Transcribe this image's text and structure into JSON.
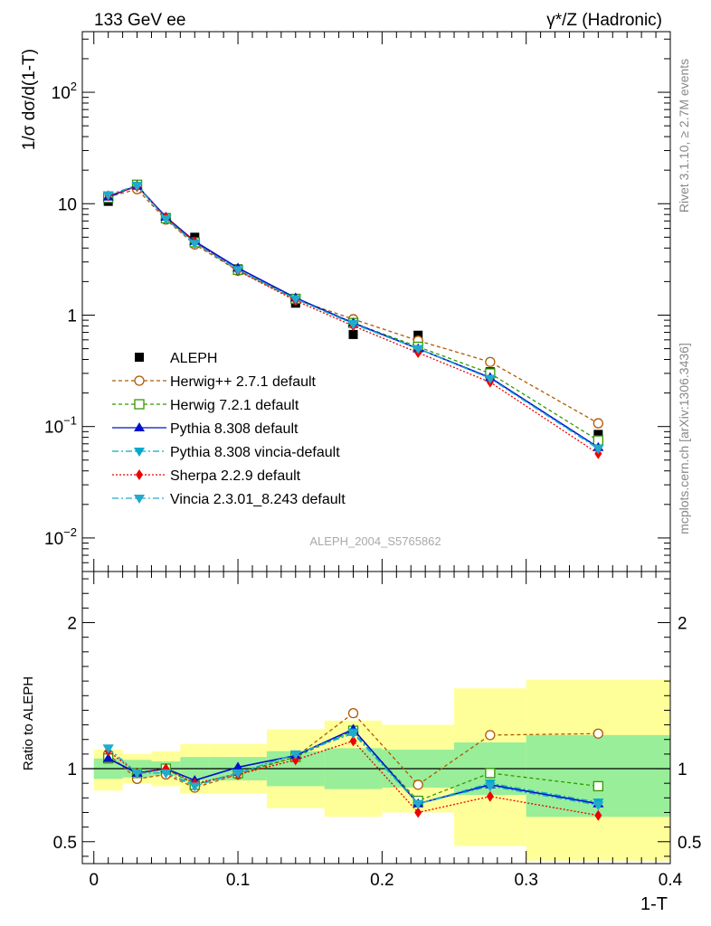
{
  "header": {
    "left": "133 GeV ee",
    "right": "γ*/Z (Hadronic)"
  },
  "side_labels": {
    "rivet": "Rivet 3.1.10, ≥ 2.7M events",
    "source": "mcplots.cern.ch [arXiv:1306.3436]"
  },
  "analysis_label": "ALEPH_2004_S5765862",
  "chart_data": [
    {
      "type": "scatter",
      "panel": "main",
      "ylabel": "1/σ  dσ/d(1-T)",
      "yscale": "log",
      "ylim": [
        0.005,
        350
      ],
      "xlim": [
        -0.008,
        0.4
      ],
      "y_ticks": [
        {
          "value": 0.01,
          "base": "10",
          "exp": "−2"
        },
        {
          "value": 0.1,
          "base": "10",
          "exp": "−1"
        },
        {
          "value": 1,
          "base": "1",
          "exp": ""
        },
        {
          "value": 10,
          "base": "10",
          "exp": ""
        },
        {
          "value": 100,
          "base": "10",
          "exp": "2"
        }
      ],
      "legend_position": "lower-left",
      "x": [
        0.01,
        0.03,
        0.05,
        0.07,
        0.1,
        0.14,
        0.18,
        0.225,
        0.275,
        0.35
      ],
      "series": [
        {
          "name": "ALEPH",
          "style": "data",
          "color": "#000000",
          "marker": "square-filled",
          "values": [
            10.5,
            14.5,
            7.5,
            5.0,
            2.6,
            1.28,
            0.67,
            0.66,
            0.31,
            0.085
          ]
        },
        {
          "name": "Herwig++ 2.7.1 default",
          "color": "#b05a00",
          "dash": "4,3",
          "marker": "circle-open",
          "values": [
            11.5,
            13.5,
            7.2,
            4.3,
            2.5,
            1.38,
            0.92,
            0.59,
            0.38,
            0.107
          ]
        },
        {
          "name": "Herwig 7.2.1 default",
          "color": "#339900",
          "dash": "4,3",
          "marker": "square-open",
          "values": [
            11.3,
            14.8,
            7.4,
            4.5,
            2.55,
            1.4,
            0.85,
            0.52,
            0.3,
            0.075
          ]
        },
        {
          "name": "Pythia 8.308 default",
          "color": "#0011cc",
          "dash": "",
          "marker": "triangle-up",
          "values": [
            11.5,
            14.5,
            7.6,
            4.6,
            2.65,
            1.43,
            0.85,
            0.5,
            0.275,
            0.065
          ]
        },
        {
          "name": "Pythia 8.308 vincia-default",
          "color": "#00aacc",
          "dash": "7,3,2,3",
          "marker": "triangle-down",
          "values": [
            12.0,
            14.6,
            7.4,
            4.45,
            2.55,
            1.4,
            0.84,
            0.5,
            0.27,
            0.064
          ]
        },
        {
          "name": "Sherpa 2.2.9 default",
          "color": "#ee0000",
          "dash": "2,2",
          "marker": "diamond",
          "values": [
            11.8,
            14.2,
            7.5,
            4.55,
            2.5,
            1.35,
            0.8,
            0.46,
            0.25,
            0.057
          ]
        },
        {
          "name": "Vincia 2.3.01_8.243 default",
          "color": "#22aacc",
          "dash": "7,3,2,3",
          "marker": "triangle-down",
          "values": [
            12.0,
            14.5,
            7.3,
            4.4,
            2.55,
            1.4,
            0.83,
            0.5,
            0.27,
            0.063
          ]
        }
      ]
    },
    {
      "type": "scatter",
      "panel": "ratio",
      "ylabel": "Ratio to ALEPH",
      "xlabel": "1-T",
      "ylim": [
        0.35,
        2.35
      ],
      "xlim": [
        -0.008,
        0.4
      ],
      "x_ticks": [
        {
          "value": 0,
          "label": "0"
        },
        {
          "value": 0.1,
          "label": "0.1"
        },
        {
          "value": 0.2,
          "label": "0.2"
        },
        {
          "value": 0.3,
          "label": "0.3"
        },
        {
          "value": 0.4,
          "label": "0.4"
        }
      ],
      "y_ticks": [
        {
          "value": 0.5,
          "label": "0.5"
        },
        {
          "value": 1,
          "label": "1"
        },
        {
          "value": 2,
          "label": "2"
        }
      ],
      "bin_edges": [
        0,
        0.02,
        0.04,
        0.06,
        0.08,
        0.12,
        0.16,
        0.2,
        0.25,
        0.3,
        0.4
      ],
      "uncertainty_bands": {
        "stat_color": "#99ee99",
        "total_color": "#ffff99",
        "green_low": [
          0.93,
          0.94,
          0.95,
          0.92,
          0.92,
          0.88,
          0.86,
          0.87,
          0.82,
          0.67
        ],
        "green_high": [
          1.07,
          1.06,
          1.05,
          1.08,
          1.08,
          1.12,
          1.14,
          1.13,
          1.18,
          1.23
        ],
        "yellow_low": [
          0.85,
          0.9,
          0.88,
          0.83,
          0.83,
          0.73,
          0.67,
          0.7,
          0.47,
          0.37
        ],
        "yellow_high": [
          1.13,
          1.1,
          1.12,
          1.17,
          1.17,
          1.27,
          1.33,
          1.3,
          1.55,
          1.61
        ]
      },
      "x": [
        0.01,
        0.03,
        0.05,
        0.07,
        0.1,
        0.14,
        0.18,
        0.225,
        0.275,
        0.35
      ],
      "series": [
        {
          "name": "Herwig++ 2.7.1 default",
          "values": [
            1.1,
            0.93,
            0.96,
            0.87,
            0.96,
            1.08,
            1.38,
            0.89,
            1.23,
            1.24
          ]
        },
        {
          "name": "Herwig 7.2.1 default",
          "values": [
            1.07,
            0.97,
            1.0,
            0.89,
            0.97,
            1.08,
            1.26,
            0.78,
            0.97,
            0.88
          ]
        },
        {
          "name": "Pythia 8.308 default",
          "values": [
            1.07,
            0.97,
            1.0,
            0.92,
            1.01,
            1.09,
            1.27,
            0.76,
            0.89,
            0.76
          ]
        },
        {
          "name": "Pythia 8.308 vincia-default",
          "values": [
            1.14,
            0.97,
            0.97,
            0.89,
            0.97,
            1.1,
            1.25,
            0.76,
            0.9,
            0.77
          ]
        },
        {
          "name": "Sherpa 2.2.9 default",
          "values": [
            1.12,
            0.97,
            1.0,
            0.9,
            0.96,
            1.06,
            1.19,
            0.7,
            0.81,
            0.68
          ]
        },
        {
          "name": "Vincia 2.3.01_8.243 default",
          "values": [
            1.14,
            0.97,
            0.97,
            0.88,
            0.97,
            1.1,
            1.24,
            0.76,
            0.88,
            0.75
          ]
        }
      ]
    }
  ]
}
